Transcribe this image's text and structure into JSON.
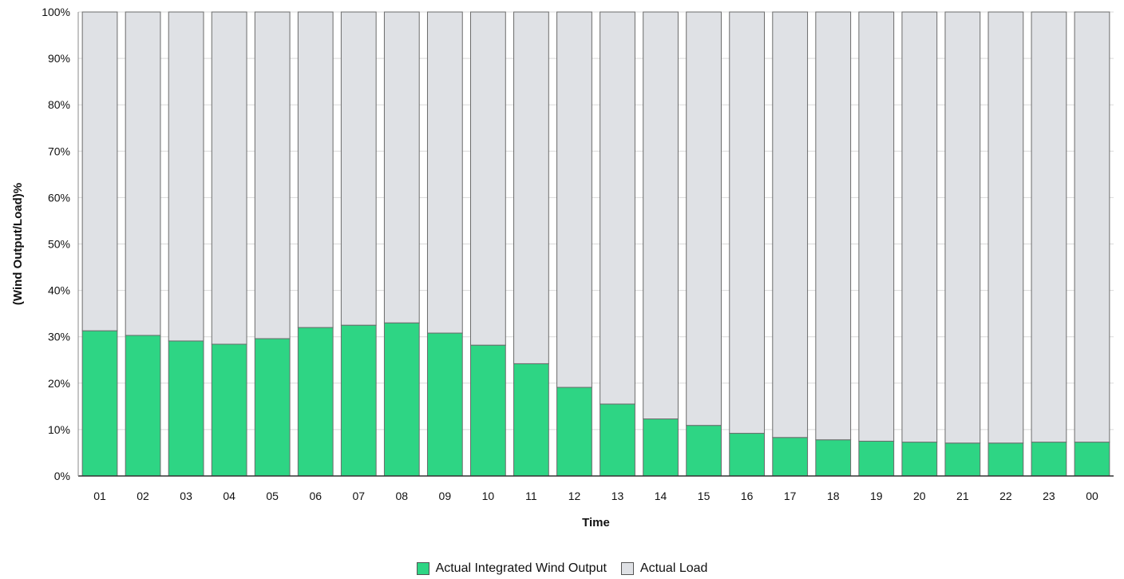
{
  "chart_data": {
    "type": "bar",
    "stacked": true,
    "title": "",
    "xlabel": "Time",
    "ylabel": "(Wind Output/Load)%",
    "ylim": [
      0,
      100
    ],
    "y_ticks": [
      "0%",
      "10%",
      "20%",
      "30%",
      "40%",
      "50%",
      "60%",
      "70%",
      "80%",
      "90%",
      "100%"
    ],
    "categories": [
      "01",
      "02",
      "03",
      "04",
      "05",
      "06",
      "07",
      "08",
      "09",
      "10",
      "11",
      "12",
      "13",
      "14",
      "15",
      "16",
      "17",
      "18",
      "19",
      "20",
      "21",
      "22",
      "23",
      "00"
    ],
    "series": [
      {
        "name": "Actual Integrated Wind Output",
        "color": "#2ed584",
        "values": [
          31.3,
          30.3,
          29.1,
          28.4,
          29.6,
          32.0,
          32.5,
          33.0,
          30.8,
          28.2,
          24.2,
          19.1,
          15.5,
          12.3,
          10.9,
          9.2,
          8.3,
          7.8,
          7.5,
          7.3,
          7.1,
          7.1,
          7.3,
          7.3
        ]
      },
      {
        "name": "Actual Load",
        "color": "#dfe1e5",
        "values": [
          68.7,
          69.7,
          70.9,
          71.6,
          70.4,
          68.0,
          67.5,
          67.0,
          69.2,
          71.8,
          75.8,
          80.9,
          84.5,
          87.7,
          89.1,
          90.8,
          91.7,
          92.2,
          92.5,
          92.7,
          92.9,
          92.9,
          92.7,
          92.7
        ]
      }
    ],
    "grid": true,
    "legend_position": "bottom-center"
  }
}
